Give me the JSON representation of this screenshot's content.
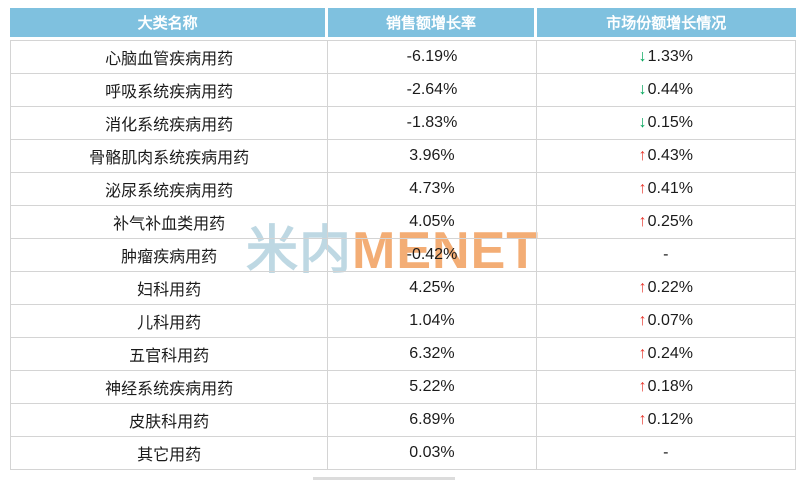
{
  "table": {
    "columns": [
      "大类名称",
      "销售额增长率",
      "市场份额增长情况"
    ],
    "rows": [
      {
        "category": "心脑血管疾病用药",
        "sales_growth": "-6.19%",
        "share_change": "1.33%",
        "direction": "down"
      },
      {
        "category": "呼吸系统疾病用药",
        "sales_growth": "-2.64%",
        "share_change": "0.44%",
        "direction": "down"
      },
      {
        "category": "消化系统疾病用药",
        "sales_growth": "-1.83%",
        "share_change": "0.15%",
        "direction": "down"
      },
      {
        "category": "骨骼肌肉系统疾病用药",
        "sales_growth": "3.96%",
        "share_change": "0.43%",
        "direction": "up"
      },
      {
        "category": "泌尿系统疾病用药",
        "sales_growth": "4.73%",
        "share_change": "0.41%",
        "direction": "up"
      },
      {
        "category": "补气补血类用药",
        "sales_growth": "4.05%",
        "share_change": "0.25%",
        "direction": "up"
      },
      {
        "category": "肿瘤疾病用药",
        "sales_growth": "-0.42%",
        "share_change": "-",
        "direction": "none"
      },
      {
        "category": "妇科用药",
        "sales_growth": "4.25%",
        "share_change": "0.22%",
        "direction": "up"
      },
      {
        "category": "儿科用药",
        "sales_growth": "1.04%",
        "share_change": "0.07%",
        "direction": "up"
      },
      {
        "category": "五官科用药",
        "sales_growth": "6.32%",
        "share_change": "0.24%",
        "direction": "up"
      },
      {
        "category": "神经系统疾病用药",
        "sales_growth": "5.22%",
        "share_change": "0.18%",
        "direction": "up"
      },
      {
        "category": "皮肤科用药",
        "sales_growth": "6.89%",
        "share_change": "0.12%",
        "direction": "up"
      },
      {
        "category": "其它用药",
        "sales_growth": "0.03%",
        "share_change": "-",
        "direction": "none"
      }
    ]
  },
  "icons": {
    "up_arrow": "↑",
    "down_arrow": "↓"
  },
  "watermark": {
    "cn": "米内",
    "en": "MENET"
  },
  "colors": {
    "header_bg": "#7FC1DF",
    "arrow_up": "#E8392F",
    "arrow_down": "#00A65A",
    "grid": "#D4D4D4",
    "watermark_cn": "#BED8E3",
    "watermark_en": "#F3AD75"
  }
}
